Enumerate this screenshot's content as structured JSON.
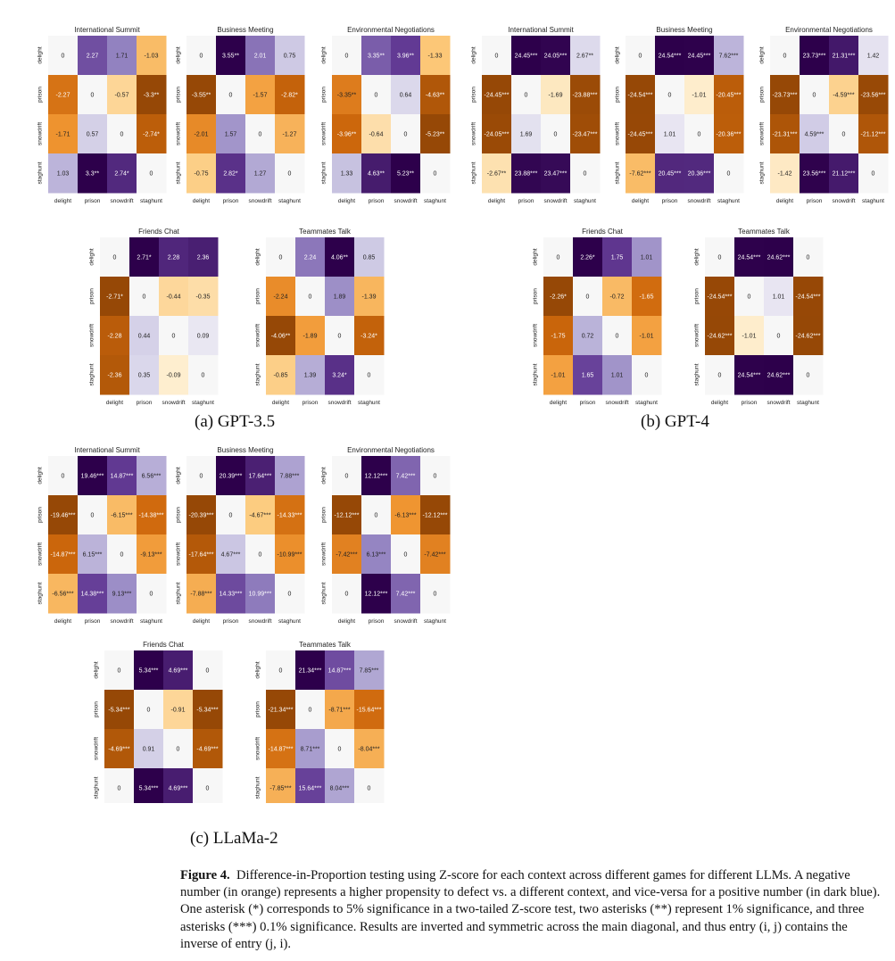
{
  "labels": [
    "delight",
    "prison",
    "snowdrift",
    "staghunt"
  ],
  "group_captions": {
    "gpt35": "(a) GPT-3.5",
    "gpt4": "(b) GPT-4",
    "llama2": "(c) LLaMa-2"
  },
  "caption": {
    "label": "Figure 4.",
    "text": "Difference-in-Proportion testing using Z-score for each context across different games for different LLMs. A negative number (in orange) represents a higher propensity to defect vs. a different context, and vice-versa for a positive number (in dark blue). One asterisk (*) corresponds to 5% significance in a two-tailed Z-score test, two asterisks (**) represent 1% significance, and three asterisks (***) 0.1% significance. Results are inverted and symmetric across the main diagonal, and thus entry (i, j) contains the inverse of entry (j, i)."
  },
  "colors": {
    "negative": "#7f3b08",
    "neutral": "#f7f7f7",
    "positive": "#2d004b"
  },
  "chart_data": [
    {
      "group": "gpt35",
      "type": "heatmap",
      "title": "International Summit",
      "rows": [
        "delight",
        "prison",
        "snowdrift",
        "staghunt"
      ],
      "columns": [
        "delight",
        "prison",
        "snowdrift",
        "staghunt"
      ],
      "values": [
        [
          0,
          2.27,
          1.71,
          -1.03
        ],
        [
          -2.27,
          0,
          -0.57,
          -3.3
        ],
        [
          -1.71,
          0.57,
          0,
          -2.74
        ],
        [
          1.03,
          3.3,
          2.74,
          0
        ]
      ],
      "cells": [
        [
          "0",
          "2.27",
          "1.71",
          "-1.03"
        ],
        [
          "-2.27",
          "0",
          "-0.57",
          "-3.3**"
        ],
        [
          "-1.71",
          "0.57",
          "0",
          "-2.74*"
        ],
        [
          "1.03",
          "3.3**",
          "2.74*",
          "0"
        ]
      ]
    },
    {
      "group": "gpt35",
      "type": "heatmap",
      "title": "Business Meeting",
      "rows": [
        "delight",
        "prison",
        "snowdrift",
        "staghunt"
      ],
      "columns": [
        "delight",
        "prison",
        "snowdrift",
        "staghunt"
      ],
      "values": [
        [
          0,
          3.55,
          2.01,
          0.75
        ],
        [
          -3.55,
          0,
          -1.57,
          -2.82
        ],
        [
          -2.01,
          1.57,
          0,
          -1.27
        ],
        [
          -0.75,
          2.82,
          1.27,
          0
        ]
      ],
      "cells": [
        [
          "0",
          "3.55**",
          "2.01",
          "0.75"
        ],
        [
          "-3.55**",
          "0",
          "-1.57",
          "-2.82*"
        ],
        [
          "-2.01",
          "1.57",
          "0",
          "-1.27"
        ],
        [
          "-0.75",
          "2.82*",
          "1.27",
          "0"
        ]
      ]
    },
    {
      "group": "gpt35",
      "type": "heatmap",
      "title": "Environmental Negotiations",
      "rows": [
        "delight",
        "prison",
        "snowdrift",
        "staghunt"
      ],
      "columns": [
        "delight",
        "prison",
        "snowdrift",
        "staghunt"
      ],
      "values": [
        [
          0,
          3.35,
          3.96,
          -1.33
        ],
        [
          -3.35,
          0,
          0.64,
          -4.63
        ],
        [
          -3.96,
          -0.64,
          0,
          -5.23
        ],
        [
          1.33,
          4.63,
          5.23,
          0
        ]
      ],
      "cells": [
        [
          "0",
          "3.35**",
          "3.96**",
          "-1.33"
        ],
        [
          "-3.35**",
          "0",
          "0.64",
          "-4.63**"
        ],
        [
          "-3.96**",
          "-0.64",
          "0",
          "-5.23**"
        ],
        [
          "1.33",
          "4.63**",
          "5.23**",
          "0"
        ]
      ]
    },
    {
      "group": "gpt35",
      "type": "heatmap",
      "title": "Friends Chat",
      "rows": [
        "delight",
        "prison",
        "snowdrift",
        "staghunt"
      ],
      "columns": [
        "delight",
        "prison",
        "snowdrift",
        "staghunt"
      ],
      "values": [
        [
          0,
          2.71,
          2.28,
          2.36
        ],
        [
          -2.71,
          0,
          -0.44,
          -0.35
        ],
        [
          -2.28,
          0.44,
          0,
          0.09
        ],
        [
          -2.36,
          0.35,
          -0.09,
          0
        ]
      ],
      "cells": [
        [
          "0",
          "2.71*",
          "2.28",
          "2.36"
        ],
        [
          "-2.71*",
          "0",
          "-0.44",
          "-0.35"
        ],
        [
          "-2.28",
          "0.44",
          "0",
          "0.09"
        ],
        [
          "-2.36",
          "0.35",
          "-0.09",
          "0"
        ]
      ]
    },
    {
      "group": "gpt35",
      "type": "heatmap",
      "title": "Teammates Talk",
      "rows": [
        "delight",
        "prison",
        "snowdrift",
        "staghunt"
      ],
      "columns": [
        "delight",
        "prison",
        "snowdrift",
        "staghunt"
      ],
      "values": [
        [
          0,
          2.24,
          4.06,
          0.85
        ],
        [
          -2.24,
          0,
          1.89,
          -1.39
        ],
        [
          -4.06,
          -1.89,
          0,
          -3.24
        ],
        [
          -0.85,
          1.39,
          3.24,
          0
        ]
      ],
      "cells": [
        [
          "0",
          "2.24",
          "4.06**",
          "0.85"
        ],
        [
          "-2.24",
          "0",
          "1.89",
          "-1.39"
        ],
        [
          "-4.06**",
          "-1.89",
          "0",
          "-3.24*"
        ],
        [
          "-0.85",
          "1.39",
          "3.24*",
          "0"
        ]
      ]
    },
    {
      "group": "gpt4",
      "type": "heatmap",
      "title": "International Summit",
      "rows": [
        "delight",
        "prison",
        "snowdrift",
        "staghunt"
      ],
      "columns": [
        "delight",
        "prison",
        "snowdrift",
        "staghunt"
      ],
      "values": [
        [
          0,
          24.45,
          24.05,
          2.67
        ],
        [
          -24.45,
          0,
          -1.69,
          -23.88
        ],
        [
          -24.05,
          1.69,
          0,
          -23.47
        ],
        [
          -2.67,
          23.88,
          23.47,
          0
        ]
      ],
      "cells": [
        [
          "0",
          "24.45***",
          "24.05***",
          "2.67**"
        ],
        [
          "-24.45***",
          "0",
          "-1.69",
          "-23.88***"
        ],
        [
          "-24.05***",
          "1.69",
          "0",
          "-23.47***"
        ],
        [
          "-2.67**",
          "23.88***",
          "23.47***",
          "0"
        ]
      ]
    },
    {
      "group": "gpt4",
      "type": "heatmap",
      "title": "Business Meeting",
      "rows": [
        "delight",
        "prison",
        "snowdrift",
        "staghunt"
      ],
      "columns": [
        "delight",
        "prison",
        "snowdrift",
        "staghunt"
      ],
      "values": [
        [
          0,
          24.54,
          24.45,
          7.62
        ],
        [
          -24.54,
          0,
          -1.01,
          -20.45
        ],
        [
          -24.45,
          1.01,
          0,
          -20.36
        ],
        [
          -7.62,
          20.45,
          20.36,
          0
        ]
      ],
      "cells": [
        [
          "0",
          "24.54***",
          "24.45***",
          "7.62***"
        ],
        [
          "-24.54***",
          "0",
          "-1.01",
          "-20.45***"
        ],
        [
          "-24.45***",
          "1.01",
          "0",
          "-20.36***"
        ],
        [
          "-7.62***",
          "20.45***",
          "20.36***",
          "0"
        ]
      ]
    },
    {
      "group": "gpt4",
      "type": "heatmap",
      "title": "Environmental Negotiations",
      "rows": [
        "delight",
        "prison",
        "snowdrift",
        "staghunt"
      ],
      "columns": [
        "delight",
        "prison",
        "snowdrift",
        "staghunt"
      ],
      "values": [
        [
          0,
          23.73,
          21.31,
          1.42
        ],
        [
          -23.73,
          0,
          -4.59,
          -23.56
        ],
        [
          -21.31,
          4.59,
          0,
          -21.12
        ],
        [
          -1.42,
          23.56,
          21.12,
          0
        ]
      ],
      "cells": [
        [
          "0",
          "23.73***",
          "21.31***",
          "1.42"
        ],
        [
          "-23.73***",
          "0",
          "-4.59***",
          "-23.56***"
        ],
        [
          "-21.31***",
          "4.59***",
          "0",
          "-21.12***"
        ],
        [
          "-1.42",
          "23.56***",
          "21.12***",
          "0"
        ]
      ]
    },
    {
      "group": "gpt4",
      "type": "heatmap",
      "title": "Friends Chat",
      "rows": [
        "delight",
        "prison",
        "snowdrift",
        "staghunt"
      ],
      "columns": [
        "delight",
        "prison",
        "snowdrift",
        "staghunt"
      ],
      "values": [
        [
          0,
          2.26,
          1.75,
          1.01
        ],
        [
          -2.26,
          0,
          -0.72,
          -1.65
        ],
        [
          -1.75,
          0.72,
          0,
          -1.01
        ],
        [
          -1.01,
          1.65,
          1.01,
          0
        ]
      ],
      "cells": [
        [
          "0",
          "2.26*",
          "1.75",
          "1.01"
        ],
        [
          "-2.26*",
          "0",
          "-0.72",
          "-1.65"
        ],
        [
          "-1.75",
          "0.72",
          "0",
          "-1.01"
        ],
        [
          "-1.01",
          "1.65",
          "1.01",
          "0"
        ]
      ]
    },
    {
      "group": "gpt4",
      "type": "heatmap",
      "title": "Teammates Talk",
      "rows": [
        "delight",
        "prison",
        "snowdrift",
        "staghunt"
      ],
      "columns": [
        "delight",
        "prison",
        "snowdrift",
        "staghunt"
      ],
      "values": [
        [
          0,
          24.54,
          24.62,
          0
        ],
        [
          -24.54,
          0,
          1.01,
          -24.54
        ],
        [
          -24.62,
          -1.01,
          0,
          -24.62
        ],
        [
          0,
          24.54,
          24.62,
          0
        ]
      ],
      "cells": [
        [
          "0",
          "24.54***",
          "24.62***",
          "0"
        ],
        [
          "-24.54***",
          "0",
          "1.01",
          "-24.54***"
        ],
        [
          "-24.62***",
          "-1.01",
          "0",
          "-24.62***"
        ],
        [
          "0",
          "24.54***",
          "24.62***",
          "0"
        ]
      ]
    },
    {
      "group": "llama2",
      "type": "heatmap",
      "title": "International Summit",
      "rows": [
        "delight",
        "prison",
        "snowdrift",
        "staghunt"
      ],
      "columns": [
        "delight",
        "prison",
        "snowdrift",
        "staghunt"
      ],
      "values": [
        [
          0,
          19.46,
          14.87,
          6.56
        ],
        [
          -19.46,
          0,
          -6.15,
          -14.38
        ],
        [
          -14.87,
          6.15,
          0,
          -9.13
        ],
        [
          -6.56,
          14.38,
          9.13,
          0
        ]
      ],
      "cells": [
        [
          "0",
          "19.46***",
          "14.87***",
          "6.56***"
        ],
        [
          "-19.46***",
          "0",
          "-6.15***",
          "-14.38***"
        ],
        [
          "-14.87***",
          "6.15***",
          "0",
          "-9.13***"
        ],
        [
          "-6.56***",
          "14.38***",
          "9.13***",
          "0"
        ]
      ]
    },
    {
      "group": "llama2",
      "type": "heatmap",
      "title": "Business Meeting",
      "rows": [
        "delight",
        "prison",
        "snowdrift",
        "staghunt"
      ],
      "columns": [
        "delight",
        "prison",
        "snowdrift",
        "staghunt"
      ],
      "values": [
        [
          0,
          20.39,
          17.64,
          7.88
        ],
        [
          -20.39,
          0,
          -4.67,
          -14.33
        ],
        [
          -17.64,
          4.67,
          0,
          -10.99
        ],
        [
          -7.88,
          14.33,
          10.99,
          0
        ]
      ],
      "cells": [
        [
          "0",
          "20.39***",
          "17.64***",
          "7.88***"
        ],
        [
          "-20.39***",
          "0",
          "-4.67***",
          "-14.33***"
        ],
        [
          "-17.64***",
          "4.67***",
          "0",
          "-10.99***"
        ],
        [
          "-7.88***",
          "14.33***",
          "10.99***",
          "0"
        ]
      ]
    },
    {
      "group": "llama2",
      "type": "heatmap",
      "title": "Environmental Negotiations",
      "rows": [
        "delight",
        "prison",
        "snowdrift",
        "staghunt"
      ],
      "columns": [
        "delight",
        "prison",
        "snowdrift",
        "staghunt"
      ],
      "values": [
        [
          0,
          12.12,
          7.42,
          0
        ],
        [
          -12.12,
          0,
          -6.13,
          -12.12
        ],
        [
          -7.42,
          6.13,
          0,
          -7.42
        ],
        [
          0,
          12.12,
          7.42,
          0
        ]
      ],
      "cells": [
        [
          "0",
          "12.12***",
          "7.42***",
          "0"
        ],
        [
          "-12.12***",
          "0",
          "-6.13***",
          "-12.12***"
        ],
        [
          "-7.42***",
          "6.13***",
          "0",
          "-7.42***"
        ],
        [
          "0",
          "12.12***",
          "7.42***",
          "0"
        ]
      ]
    },
    {
      "group": "llama2",
      "type": "heatmap",
      "title": "Friends Chat",
      "rows": [
        "delight",
        "prison",
        "snowdrift",
        "staghunt"
      ],
      "columns": [
        "delight",
        "prison",
        "snowdrift",
        "staghunt"
      ],
      "values": [
        [
          0,
          5.34,
          4.69,
          0
        ],
        [
          -5.34,
          0,
          -0.91,
          -5.34
        ],
        [
          -4.69,
          0.91,
          0,
          -4.69
        ],
        [
          0,
          5.34,
          4.69,
          0
        ]
      ],
      "cells": [
        [
          "0",
          "5.34***",
          "4.69***",
          "0"
        ],
        [
          "-5.34***",
          "0",
          "-0.91",
          "-5.34***"
        ],
        [
          "-4.69***",
          "0.91",
          "0",
          "-4.69***"
        ],
        [
          "0",
          "5.34***",
          "4.69***",
          "0"
        ]
      ]
    },
    {
      "group": "llama2",
      "type": "heatmap",
      "title": "Teammates Talk",
      "rows": [
        "delight",
        "prison",
        "snowdrift",
        "staghunt"
      ],
      "columns": [
        "delight",
        "prison",
        "snowdrift",
        "staghunt"
      ],
      "values": [
        [
          0,
          21.34,
          14.87,
          7.85
        ],
        [
          -21.34,
          0,
          -8.71,
          -15.64
        ],
        [
          -14.87,
          8.71,
          0,
          -8.04
        ],
        [
          -7.85,
          15.64,
          8.04,
          0
        ]
      ],
      "cells": [
        [
          "0",
          "21.34***",
          "14.87***",
          "7.85***"
        ],
        [
          "-21.34***",
          "0",
          "-8.71***",
          "-15.64***"
        ],
        [
          "-14.87***",
          "8.71***",
          "0",
          "-8.04***"
        ],
        [
          "-7.85***",
          "15.64***",
          "8.04***",
          "0"
        ]
      ]
    }
  ]
}
